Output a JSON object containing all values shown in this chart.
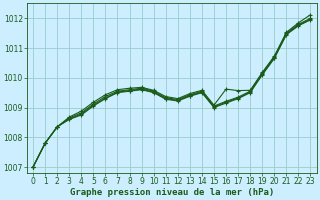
{
  "title": "Graphe pression niveau de la mer (hPa)",
  "bg_color": "#cceeff",
  "grid_color": "#99cccc",
  "line_color": "#1a5c1a",
  "xlim": [
    -0.5,
    23.5
  ],
  "ylim": [
    1006.8,
    1012.5
  ],
  "yticks": [
    1007,
    1008,
    1009,
    1010,
    1011,
    1012
  ],
  "xticks": [
    0,
    1,
    2,
    3,
    4,
    5,
    6,
    7,
    8,
    9,
    10,
    11,
    12,
    13,
    14,
    15,
    16,
    17,
    18,
    19,
    20,
    21,
    22,
    23
  ],
  "series": [
    [
      1007.0,
      1007.8,
      1008.35,
      1008.6,
      1008.75,
      1009.05,
      1009.3,
      1009.5,
      1009.55,
      1009.6,
      1009.5,
      1009.28,
      1009.22,
      1009.38,
      1009.5,
      1009.0,
      1009.15,
      1009.3,
      1009.5,
      1010.1,
      1010.65,
      1011.45,
      1011.75,
      1011.95
    ],
    [
      1007.0,
      1007.8,
      1008.35,
      1008.62,
      1008.78,
      1009.08,
      1009.32,
      1009.52,
      1009.57,
      1009.62,
      1009.52,
      1009.3,
      1009.24,
      1009.4,
      1009.52,
      1009.02,
      1009.18,
      1009.32,
      1009.52,
      1010.12,
      1010.67,
      1011.47,
      1011.77,
      1011.97
    ],
    [
      1007.0,
      1007.8,
      1008.35,
      1008.65,
      1008.82,
      1009.12,
      1009.37,
      1009.55,
      1009.6,
      1009.65,
      1009.55,
      1009.33,
      1009.27,
      1009.43,
      1009.55,
      1009.05,
      1009.21,
      1009.35,
      1009.55,
      1010.15,
      1010.7,
      1011.5,
      1011.8,
      1012.0
    ],
    [
      1007.0,
      1007.8,
      1008.35,
      1008.68,
      1008.88,
      1009.18,
      1009.43,
      1009.6,
      1009.65,
      1009.68,
      1009.58,
      1009.37,
      1009.3,
      1009.47,
      1009.58,
      1009.08,
      1009.62,
      1009.57,
      1009.58,
      1010.18,
      1010.73,
      1011.53,
      1011.85,
      1012.12
    ]
  ],
  "marker": "+",
  "markersize": 3.5,
  "linewidth": 0.8,
  "markeredgewidth": 0.8,
  "tick_labelsize": 5.5,
  "xlabel_fontsize": 6.5
}
